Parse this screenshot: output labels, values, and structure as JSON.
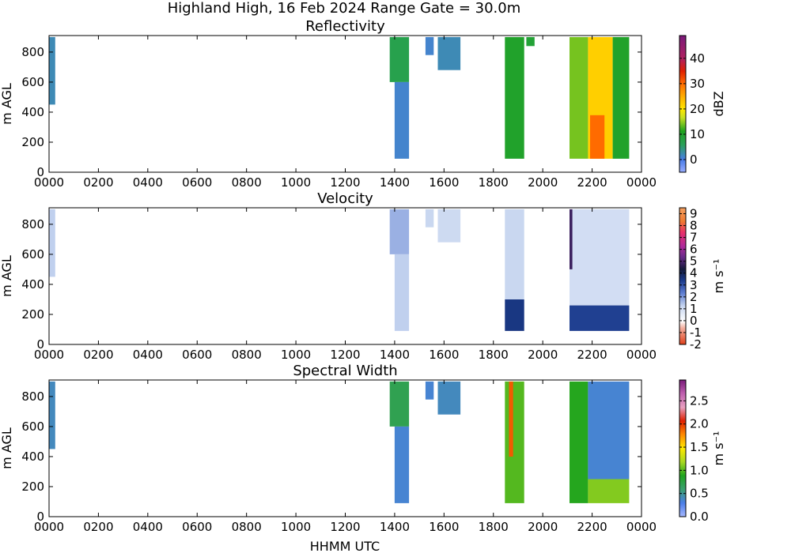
{
  "figure": {
    "suptitle": "Highland High, 16 Feb 2024 Range Gate = 30.0m",
    "xlabel": "HHMM UTC"
  },
  "chart_data": [
    {
      "type": "heatmap",
      "title": "Reflectivity",
      "ylabel": "m AGL",
      "xlabel": "HHMM UTC",
      "x_ticks": [
        "0000",
        "0200",
        "0400",
        "0600",
        "0800",
        "1000",
        "1200",
        "1400",
        "1600",
        "1800",
        "2000",
        "2200",
        "0000"
      ],
      "xlim_hours": [
        0,
        24
      ],
      "y_ticks": [
        0,
        200,
        400,
        600,
        800
      ],
      "ylim": [
        0,
        910
      ],
      "colorbar": {
        "label": "dBZ",
        "range": [
          -5,
          49
        ],
        "ticks": [
          "0",
          "10",
          "20",
          "30",
          "40"
        ],
        "tick_values": [
          0,
          10,
          20,
          30,
          40
        ]
      },
      "echoes": [
        {
          "start": "0000",
          "end": "0015",
          "bottom": 450,
          "top": 900,
          "value": 2
        },
        {
          "start": "1348",
          "end": "1435",
          "bottom": 600,
          "top": 900,
          "value": 7
        },
        {
          "start": "1400",
          "end": "1435",
          "bottom": 90,
          "top": 600,
          "value": 1
        },
        {
          "start": "1515",
          "end": "1535",
          "bottom": 780,
          "top": 900,
          "value": 1
        },
        {
          "start": "1545",
          "end": "1640",
          "bottom": 680,
          "top": 900,
          "value": 2
        },
        {
          "start": "1828",
          "end": "1915",
          "bottom": 90,
          "top": 900,
          "value": 10
        },
        {
          "start": "1920",
          "end": "1940",
          "bottom": 840,
          "top": 900,
          "value": 9
        },
        {
          "start": "2105",
          "end": "2150",
          "bottom": 90,
          "top": 900,
          "value": 14
        },
        {
          "start": "2150",
          "end": "2250",
          "bottom": 90,
          "top": 900,
          "value": 22
        },
        {
          "start": "2155",
          "end": "2230",
          "bottom": 90,
          "top": 380,
          "value": 30
        },
        {
          "start": "2250",
          "end": "2330",
          "bottom": 90,
          "top": 900,
          "value": 10
        }
      ]
    },
    {
      "type": "heatmap",
      "title": "Velocity",
      "ylabel": "m AGL",
      "xlabel": "HHMM UTC",
      "x_ticks": [
        "0000",
        "0200",
        "0400",
        "0600",
        "0800",
        "1000",
        "1200",
        "1400",
        "1600",
        "1800",
        "2000",
        "2200",
        "0000"
      ],
      "xlim_hours": [
        0,
        24
      ],
      "y_ticks": [
        0,
        200,
        400,
        600,
        800
      ],
      "ylim": [
        0,
        910
      ],
      "colorbar": {
        "label": "m s⁻¹",
        "range": [
          -2,
          9.5
        ],
        "ticks": [
          "-2",
          "-1",
          "0",
          "1",
          "2",
          "3",
          "4",
          "5",
          "6",
          "7",
          "8",
          "9"
        ],
        "tick_values": [
          -2,
          -1,
          0,
          1,
          2,
          3,
          4,
          5,
          6,
          7,
          8,
          9
        ]
      },
      "echoes": [
        {
          "start": "0000",
          "end": "0015",
          "bottom": 450,
          "top": 900,
          "value": 1.3
        },
        {
          "start": "1348",
          "end": "1435",
          "bottom": 600,
          "top": 900,
          "value": 1.7
        },
        {
          "start": "1400",
          "end": "1435",
          "bottom": 90,
          "top": 600,
          "value": 1.3
        },
        {
          "start": "1515",
          "end": "1535",
          "bottom": 780,
          "top": 900,
          "value": 1.2
        },
        {
          "start": "1545",
          "end": "1640",
          "bottom": 680,
          "top": 900,
          "value": 1.1
        },
        {
          "start": "1828",
          "end": "1915",
          "bottom": 300,
          "top": 900,
          "value": 1.2
        },
        {
          "start": "1828",
          "end": "1915",
          "bottom": 90,
          "top": 300,
          "value": 3.5
        },
        {
          "start": "2105",
          "end": "2330",
          "bottom": 260,
          "top": 900,
          "value": 1.0
        },
        {
          "start": "2105",
          "end": "2330",
          "bottom": 90,
          "top": 260,
          "value": 3.3
        },
        {
          "start": "2105",
          "end": "2112",
          "bottom": 500,
          "top": 900,
          "value": 4.8
        }
      ]
    },
    {
      "type": "heatmap",
      "title": "Spectral Width",
      "ylabel": "m AGL",
      "xlabel": "HHMM UTC",
      "x_ticks": [
        "0000",
        "0200",
        "0400",
        "0600",
        "0800",
        "1000",
        "1200",
        "1400",
        "1600",
        "1800",
        "2000",
        "2200",
        "0000"
      ],
      "xlim_hours": [
        0,
        24
      ],
      "y_ticks": [
        0,
        200,
        400,
        600,
        800
      ],
      "ylim": [
        0,
        910
      ],
      "colorbar": {
        "label": "m s⁻¹",
        "range": [
          0,
          2.95
        ],
        "ticks": [
          "0.0",
          "0.5",
          "1.0",
          "1.5",
          "2.0",
          "2.5"
        ],
        "tick_values": [
          0,
          0.5,
          1.0,
          1.5,
          2.0,
          2.5
        ]
      },
      "echoes": [
        {
          "start": "0000",
          "end": "0015",
          "bottom": 450,
          "top": 900,
          "value": 0.4
        },
        {
          "start": "1348",
          "end": "1435",
          "bottom": 600,
          "top": 900,
          "value": 0.7
        },
        {
          "start": "1400",
          "end": "1435",
          "bottom": 90,
          "top": 600,
          "value": 0.35
        },
        {
          "start": "1515",
          "end": "1535",
          "bottom": 780,
          "top": 900,
          "value": 0.35
        },
        {
          "start": "1545",
          "end": "1640",
          "bottom": 680,
          "top": 900,
          "value": 0.4
        },
        {
          "start": "1828",
          "end": "1915",
          "bottom": 90,
          "top": 900,
          "value": 1.0
        },
        {
          "start": "1838",
          "end": "1848",
          "bottom": 400,
          "top": 900,
          "value": 1.9
        },
        {
          "start": "2105",
          "end": "2150",
          "bottom": 90,
          "top": 900,
          "value": 0.9
        },
        {
          "start": "2150",
          "end": "2330",
          "bottom": 250,
          "top": 900,
          "value": 0.35
        },
        {
          "start": "2150",
          "end": "2330",
          "bottom": 90,
          "top": 250,
          "value": 1.1
        }
      ]
    }
  ]
}
